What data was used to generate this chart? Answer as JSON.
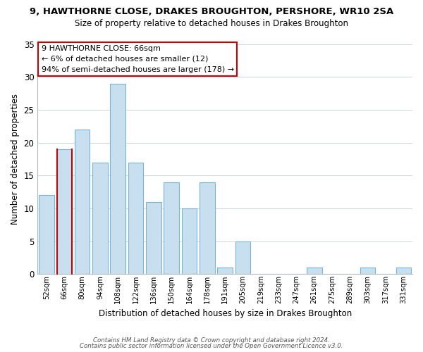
{
  "title_line1": "9, HAWTHORNE CLOSE, DRAKES BROUGHTON, PERSHORE, WR10 2SA",
  "title_line2": "Size of property relative to detached houses in Drakes Broughton",
  "xlabel": "Distribution of detached houses by size in Drakes Broughton",
  "ylabel": "Number of detached properties",
  "bin_labels": [
    "52sqm",
    "66sqm",
    "80sqm",
    "94sqm",
    "108sqm",
    "122sqm",
    "136sqm",
    "150sqm",
    "164sqm",
    "178sqm",
    "191sqm",
    "205sqm",
    "219sqm",
    "233sqm",
    "247sqm",
    "261sqm",
    "275sqm",
    "289sqm",
    "303sqm",
    "317sqm",
    "331sqm"
  ],
  "bar_heights": [
    12,
    19,
    22,
    17,
    29,
    17,
    11,
    14,
    10,
    14,
    1,
    5,
    0,
    0,
    0,
    1,
    0,
    0,
    1,
    0,
    1
  ],
  "highlight_bar_index": 1,
  "bar_color": "#c8dff0",
  "highlight_bar_color": "#c8dff0",
  "bar_edge_color": "#7ab3d8",
  "highlight_edge_color": "#cc0000",
  "ylim": [
    0,
    35
  ],
  "yticks": [
    0,
    5,
    10,
    15,
    20,
    25,
    30,
    35
  ],
  "annotation_lines": [
    "9 HAWTHORNE CLOSE: 66sqm",
    "← 6% of detached houses are smaller (12)",
    "94% of semi-detached houses are larger (178) →"
  ],
  "annotation_box_edge": "#cc0000",
  "footer_line1": "Contains HM Land Registry data © Crown copyright and database right 2024.",
  "footer_line2": "Contains public sector information licensed under the Open Government Licence v3.0."
}
